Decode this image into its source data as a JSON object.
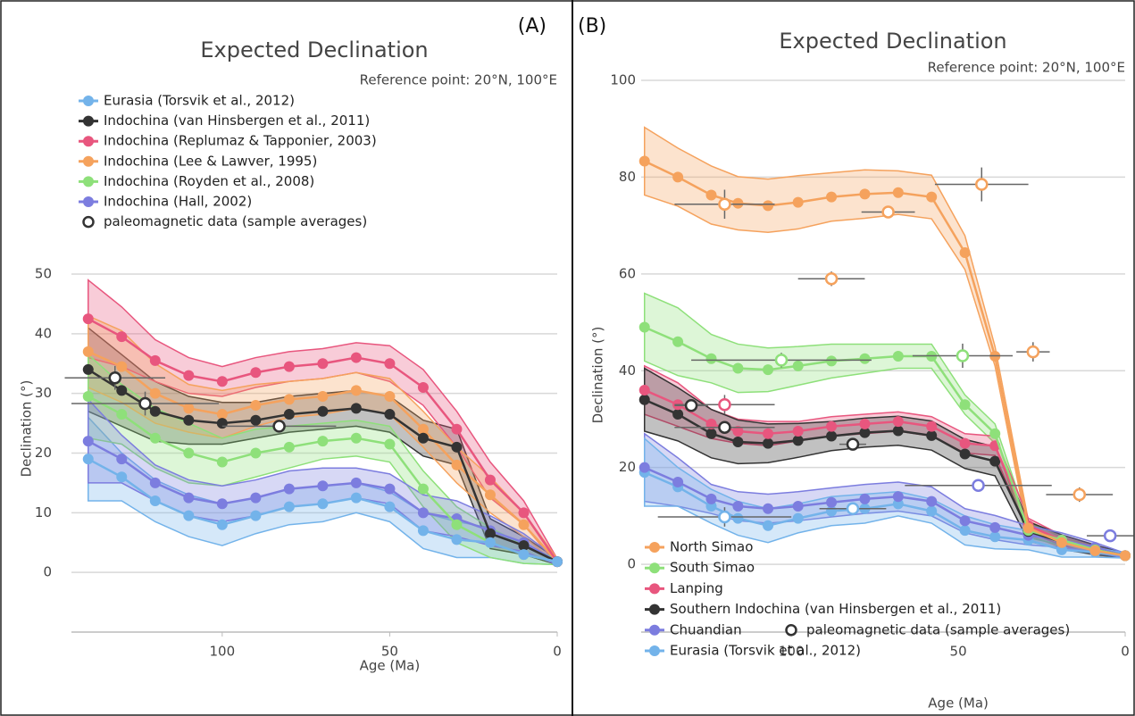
{
  "chart_data": [
    {
      "type": "line",
      "panel_label": "(A)",
      "title": "Expected Declination",
      "subtitle": "Reference point: 20°N, 100°E",
      "xlabel": "Age (Ma)",
      "ylabel": "Declination (°)",
      "xlim": [
        145,
        0
      ],
      "xticks": [
        100,
        50,
        0
      ],
      "ylim": [
        -10,
        50
      ],
      "yticks": [
        0,
        10,
        20,
        30,
        40,
        50
      ],
      "grid": true,
      "legend": "upper left",
      "x": [
        140,
        130,
        120,
        110,
        100,
        90,
        80,
        70,
        60,
        50,
        40,
        30,
        20,
        10,
        0
      ],
      "series": [
        {
          "name": "Eurasia (Torsvik et al., 2012)",
          "color": "#73b3ea",
          "values": [
            19,
            16,
            12,
            9.5,
            8,
            9.5,
            11,
            11.5,
            12.5,
            11,
            7,
            5.5,
            5,
            3,
            1.8
          ],
          "errors": [
            7,
            4,
            3.5,
            3.5,
            3.5,
            3,
            3,
            3,
            2.5,
            2.5,
            3,
            3,
            2.5,
            1.5,
            0.5
          ]
        },
        {
          "name": "Indochina (van Hinsbergen et al., 2011)",
          "color": "#333333",
          "values": [
            34,
            30.5,
            27,
            25.5,
            25,
            25.5,
            26.5,
            27,
            27.5,
            26.5,
            22.5,
            21,
            6.5,
            4.5,
            1.8
          ],
          "errors": [
            7,
            6,
            5,
            4,
            3.5,
            3,
            3,
            3,
            3,
            3,
            3,
            3,
            2.5,
            1.5,
            0.5
          ]
        },
        {
          "name": "Indochina (Replumaz & Tapponier, 2003)",
          "color": "#e8567e",
          "values": [
            42.5,
            39.5,
            35.5,
            33,
            32,
            33.5,
            34.5,
            35,
            36,
            35,
            31,
            24,
            15.5,
            10,
            1.8
          ],
          "errors": [
            6.5,
            5,
            3.5,
            3,
            2.5,
            2.5,
            2.5,
            2.5,
            2.5,
            3,
            3,
            3,
            3,
            2,
            0.5
          ]
        },
        {
          "name": "Indochina (Lee & Lawver, 1995)",
          "color": "#f5a25d",
          "values": [
            37,
            34.5,
            30,
            27.5,
            26.5,
            28,
            29,
            29.5,
            30.5,
            29.5,
            24,
            18,
            13,
            8,
            1.8
          ],
          "errors": [
            6,
            6,
            5,
            4,
            4,
            3.5,
            3,
            3,
            3,
            3,
            3,
            3,
            3,
            2,
            0.5
          ]
        },
        {
          "name": "Indochina (Royden et al., 2008)",
          "color": "#8ee07a",
          "values": [
            29.5,
            26.5,
            22.5,
            20,
            18.5,
            20,
            21,
            22,
            22.5,
            21.5,
            14,
            8,
            5,
            3,
            1.8
          ],
          "errors": [
            7,
            5,
            5,
            5,
            4,
            4,
            3.5,
            3,
            3,
            3,
            3,
            3,
            2.5,
            1.5,
            0.5
          ]
        },
        {
          "name": "Indochina (Hall, 2002)",
          "color": "#7c7ddf",
          "values": [
            22,
            19,
            15,
            12.5,
            11.5,
            12.5,
            14,
            14.5,
            15,
            14,
            10,
            9,
            7,
            5,
            1.8
          ],
          "errors": [
            7,
            4,
            3,
            3,
            3,
            3,
            3,
            3,
            2.5,
            2.5,
            3,
            3,
            2.5,
            1.5,
            0.5
          ]
        }
      ],
      "points": {
        "name": "paleomagnetic data (sample averages)",
        "x": [
          132,
          123,
          83
        ],
        "values": [
          32.6,
          28.3,
          24.5
        ],
        "xerr": [
          15,
          22,
          17
        ],
        "yerr": [
          2,
          2,
          1
        ],
        "colors": [
          "#333333",
          "#333333",
          "#333333"
        ]
      }
    },
    {
      "type": "line",
      "panel_label": "(B)",
      "title": "Expected Declination",
      "subtitle": "Reference point: 20°N, 100°E",
      "xlabel": "Age (Ma)",
      "ylabel": "Declination (°)",
      "xlim": [
        145,
        0
      ],
      "xticks": [
        100,
        50,
        0
      ],
      "ylim": [
        -14,
        100
      ],
      "yticks": [
        0,
        20,
        40,
        60,
        80,
        100
      ],
      "grid": true,
      "legend": "lower left",
      "x": [
        144,
        134,
        124,
        116,
        107,
        98,
        88,
        78,
        68,
        58,
        48,
        39,
        29,
        19,
        9,
        0
      ],
      "series": [
        {
          "name": "North Simao",
          "color": "#f5a25d",
          "values": [
            83.3,
            80,
            76.3,
            74.6,
            74.1,
            74.8,
            75.9,
            76.5,
            76.8,
            75.9,
            64.4,
            43,
            7.5,
            4.5,
            2.8,
            1.8
          ],
          "errors": [
            7,
            6,
            6,
            5.5,
            5.5,
            5.5,
            5,
            5,
            4.5,
            4.5,
            3.5,
            2,
            1.5,
            1,
            1,
            0.5
          ]
        },
        {
          "name": "South Simao",
          "color": "#8ee07a",
          "values": [
            49,
            46,
            42.5,
            40.5,
            40.2,
            41,
            42,
            42.5,
            43,
            43,
            33,
            27,
            7,
            5,
            3,
            1.8
          ],
          "errors": [
            7,
            7,
            5,
            5,
            4.5,
            4,
            3.5,
            3,
            2.5,
            2.5,
            2,
            2,
            1.5,
            1,
            1,
            0.5
          ]
        },
        {
          "name": "Lanping",
          "color": "#e8567e",
          "values": [
            36,
            33,
            29,
            27.5,
            27,
            27.5,
            28.5,
            29,
            29.5,
            28.5,
            25,
            24.5,
            8,
            5,
            3,
            1.8
          ],
          "errors": [
            5,
            4.5,
            3,
            2.5,
            2.5,
            2,
            2,
            2,
            2,
            2,
            2,
            2,
            1.5,
            1,
            1,
            0.5
          ]
        },
        {
          "name": "Southern Indochina (van Hinsbergen et al., 2011)",
          "color": "#333333",
          "values": [
            34,
            31,
            27,
            25.3,
            25,
            25.6,
            26.5,
            27.2,
            27.6,
            26.6,
            22.8,
            21.3,
            6.8,
            4.6,
            3,
            1.8
          ],
          "errors": [
            6.5,
            5.5,
            5,
            4.5,
            4,
            3.5,
            3,
            3,
            3,
            3,
            3,
            3,
            2,
            1.5,
            1,
            0.5
          ]
        },
        {
          "name": "Chuandian",
          "color": "#7c7ddf",
          "values": [
            20,
            17,
            13.5,
            12,
            11.5,
            12,
            12.8,
            13.5,
            14,
            13,
            9,
            7.6,
            6,
            5,
            3.5,
            1.8
          ],
          "errors": [
            7,
            5,
            3,
            3,
            3,
            3,
            3,
            3,
            3,
            3,
            2.5,
            2.5,
            2,
            1.5,
            1,
            0.5
          ]
        },
        {
          "name": "Eurasia (Torsvik et al., 2012)",
          "color": "#73b3ea",
          "values": [
            19,
            16,
            12,
            9.5,
            8,
            9.5,
            11,
            11.5,
            12.5,
            11,
            7,
            5.7,
            5,
            3,
            2.5,
            1.8
          ],
          "errors": [
            7,
            4,
            3.5,
            3.5,
            3.5,
            3,
            3,
            3,
            2.5,
            2.5,
            3,
            2.5,
            2,
            1.5,
            1,
            0.5
          ]
        }
      ],
      "points": {
        "name": "paleomagnetic data (sample averages)",
        "x": [
          120,
          71,
          88,
          43,
          27.6,
          13.7,
          103,
          48.7,
          120,
          130,
          120,
          81.6,
          44,
          4.5,
          120,
          81.6
        ],
        "values": [
          74.4,
          72.8,
          59,
          78.5,
          43.9,
          14.4,
          42.2,
          43.1,
          33,
          32.8,
          28.3,
          24.8,
          16.3,
          5.9,
          9.8,
          11.5
        ],
        "xerr": [
          15,
          8,
          10,
          14,
          5,
          10,
          27,
          15,
          15,
          5,
          15,
          4,
          22,
          7,
          20,
          10
        ],
        "yerr": [
          3,
          1,
          1.5,
          3.5,
          2,
          1.5,
          1.5,
          2.5,
          2,
          1,
          1,
          1,
          0.5,
          1,
          2,
          1
        ],
        "colors": [
          "#f5a25d",
          "#f5a25d",
          "#f5a25d",
          "#f5a25d",
          "#f5a25d",
          "#f5a25d",
          "#8ee07a",
          "#8ee07a",
          "#e8567e",
          "#333333",
          "#333333",
          "#333333",
          "#7c7ddf",
          "#7c7ddf",
          "#73b3ea",
          "#73b3ea"
        ]
      }
    }
  ]
}
